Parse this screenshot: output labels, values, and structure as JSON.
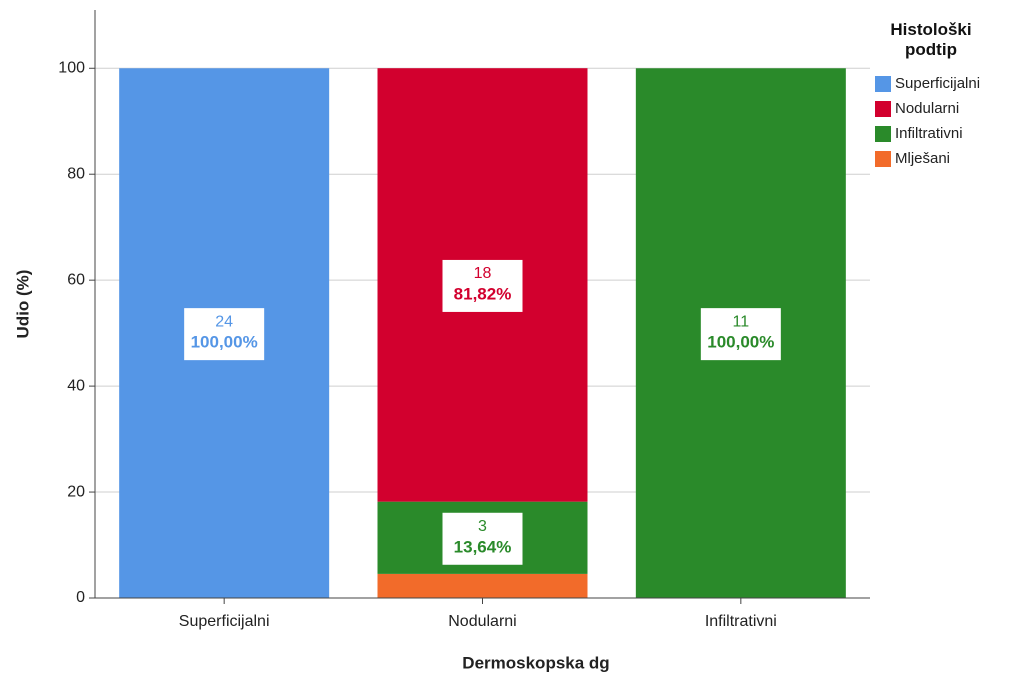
{
  "chart_data": {
    "type": "stacked_bar",
    "x_label": "Dermoskopska dg",
    "y_label": "Udio (%)",
    "legend_title": "Histološki podtip",
    "categories": [
      "Superficijalni",
      "Nodularni",
      "Infiltrativni"
    ],
    "series": [
      {
        "name": "Superficijalni",
        "color": "#5596e6",
        "values": [
          100,
          null,
          null
        ],
        "counts": [
          24,
          null,
          null
        ],
        "value_labels": [
          "100,00%",
          null,
          null
        ]
      },
      {
        "name": "Nodularni",
        "color": "#d2002e",
        "values": [
          null,
          81.82,
          null
        ],
        "counts": [
          null,
          18,
          null
        ],
        "value_labels": [
          null,
          "81,82%",
          null
        ]
      },
      {
        "name": "Infiltrativni",
        "color": "#2a8a2a",
        "values": [
          null,
          13.64,
          100
        ],
        "counts": [
          null,
          3,
          11
        ],
        "value_labels": [
          null,
          "13,64%",
          "100,00%"
        ]
      },
      {
        "name": "Mlješani",
        "color": "#f26b2a",
        "values": [
          null,
          4.55,
          null
        ]
      }
    ],
    "ylim": [
      0,
      111
    ],
    "yticks": [
      0,
      20,
      40,
      60,
      80,
      100
    ],
    "grid": true,
    "legend": "right"
  }
}
